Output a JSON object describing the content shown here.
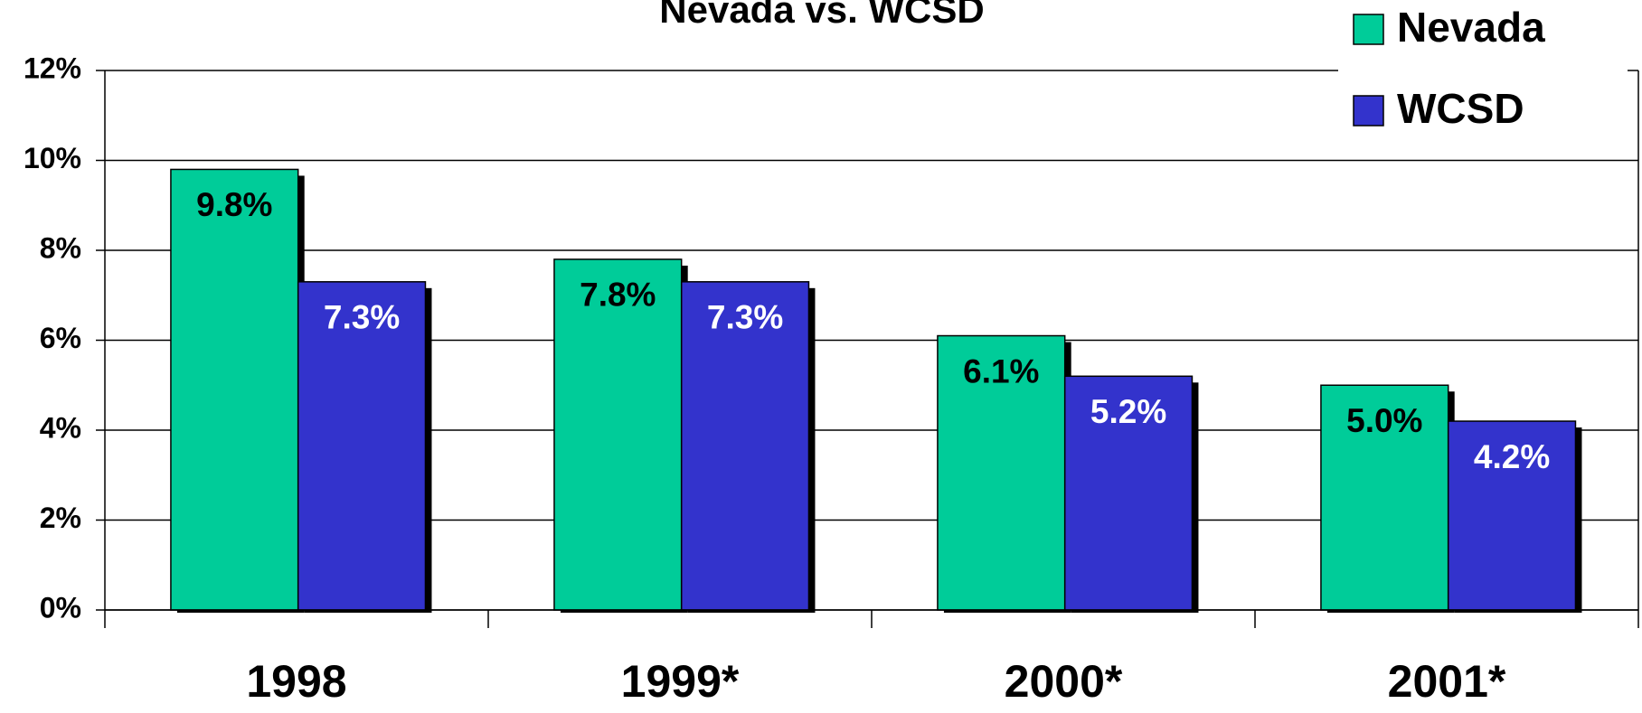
{
  "chart_data": {
    "type": "bar",
    "title": "Nevada vs. WCSD",
    "categories": [
      "1998",
      "1999*",
      "2000*",
      "2001*"
    ],
    "series": [
      {
        "name": "Nevada",
        "color": "#00cc99",
        "label_color": "#000000",
        "values": [
          9.8,
          7.8,
          6.1,
          5.0
        ],
        "value_labels": [
          "9.8%",
          "7.8%",
          "6.1%",
          "5.0%"
        ]
      },
      {
        "name": "WCSD",
        "color": "#3333cc",
        "label_color": "#ffffff",
        "values": [
          7.3,
          7.3,
          5.2,
          4.2
        ],
        "value_labels": [
          "7.3%",
          "7.3%",
          "5.2%",
          "4.2%"
        ]
      }
    ],
    "ylim": [
      0,
      12
    ],
    "yticks": [
      {
        "value": 0,
        "label": "0%"
      },
      {
        "value": 2,
        "label": "2%"
      },
      {
        "value": 4,
        "label": "4%"
      },
      {
        "value": 6,
        "label": "6%"
      },
      {
        "value": 8,
        "label": "8%"
      },
      {
        "value": 10,
        "label": "10%"
      },
      {
        "value": 12,
        "label": "12%"
      }
    ],
    "grid": true,
    "legend": "top-right"
  }
}
